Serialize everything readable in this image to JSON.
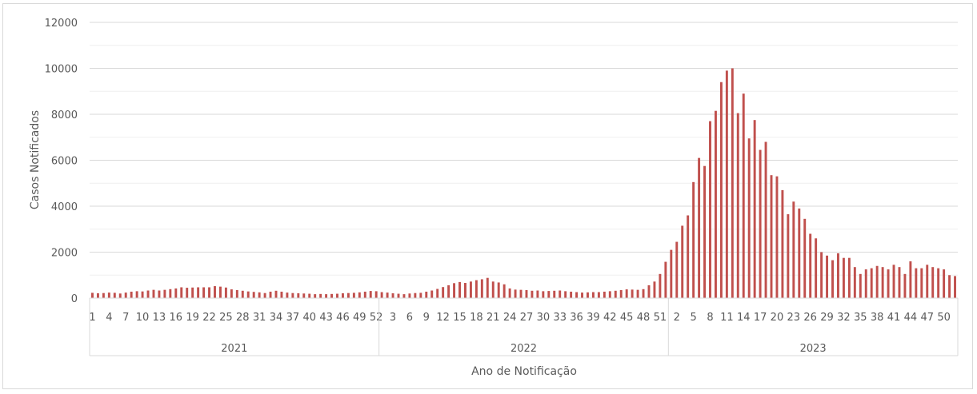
{
  "chart_data": {
    "type": "bar",
    "title": "",
    "xlabel": "Ano de Notificação",
    "ylabel": "Casos Notificados",
    "ylim": [
      0,
      12000
    ],
    "y_ticks": [
      "0",
      "2000",
      "4000",
      "6000",
      "8000",
      "10000",
      "12000"
    ],
    "grid": true,
    "legend": "none",
    "bar_color": "#c0504d",
    "years": [
      {
        "label": "2021",
        "weeks": 52,
        "week_tick_labels": [
          "1",
          "4",
          "7",
          "10",
          "13",
          "16",
          "19",
          "22",
          "25",
          "28",
          "31",
          "34",
          "37",
          "40",
          "43",
          "46",
          "49",
          "52"
        ],
        "values": [
          230,
          210,
          220,
          240,
          230,
          200,
          240,
          280,
          300,
          290,
          330,
          360,
          330,
          360,
          390,
          420,
          470,
          450,
          460,
          470,
          470,
          470,
          520,
          500,
          460,
          380,
          350,
          320,
          290,
          270,
          250,
          220,
          280,
          320,
          280,
          240,
          220,
          210,
          200,
          190,
          170,
          180,
          170,
          180,
          190,
          210,
          220,
          230,
          250,
          280,
          310,
          300
        ]
      },
      {
        "label": "2022",
        "weeks": 52,
        "week_tick_labels": [
          "3",
          "6",
          "9",
          "12",
          "15",
          "18",
          "21",
          "24",
          "27",
          "30",
          "33",
          "36",
          "39",
          "42",
          "45",
          "48",
          "51"
        ],
        "values": [
          260,
          240,
          210,
          190,
          170,
          200,
          220,
          230,
          280,
          330,
          400,
          480,
          560,
          650,
          700,
          660,
          720,
          780,
          820,
          880,
          720,
          680,
          600,
          420,
          370,
          360,
          350,
          320,
          330,
          300,
          310,
          320,
          330,
          300,
          280,
          260,
          240,
          250,
          260,
          260,
          280,
          300,
          320,
          350,
          380,
          370,
          360,
          390,
          560,
          720,
          1050,
          1580
        ]
      },
      {
        "label": "2023",
        "weeks": 52,
        "week_tick_labels": [
          "2",
          "5",
          "8",
          "11",
          "14",
          "17",
          "20",
          "23",
          "26",
          "29",
          "32",
          "35",
          "38",
          "41",
          "44",
          "47",
          "50"
        ],
        "values": [
          2100,
          2450,
          3150,
          3600,
          5050,
          6100,
          5750,
          7700,
          8150,
          9400,
          9900,
          10000,
          8050,
          8900,
          6950,
          7750,
          6450,
          6800,
          5350,
          5300,
          4700,
          3650,
          4200,
          3900,
          3450,
          2800,
          2600,
          2000,
          1850,
          1650,
          1950,
          1750,
          1750,
          1350,
          1050,
          1250,
          1300,
          1400,
          1350,
          1250,
          1450,
          1350,
          1050,
          1600,
          1300,
          1300,
          1450,
          1350,
          1300,
          1250,
          1000,
          960
        ]
      }
    ]
  }
}
